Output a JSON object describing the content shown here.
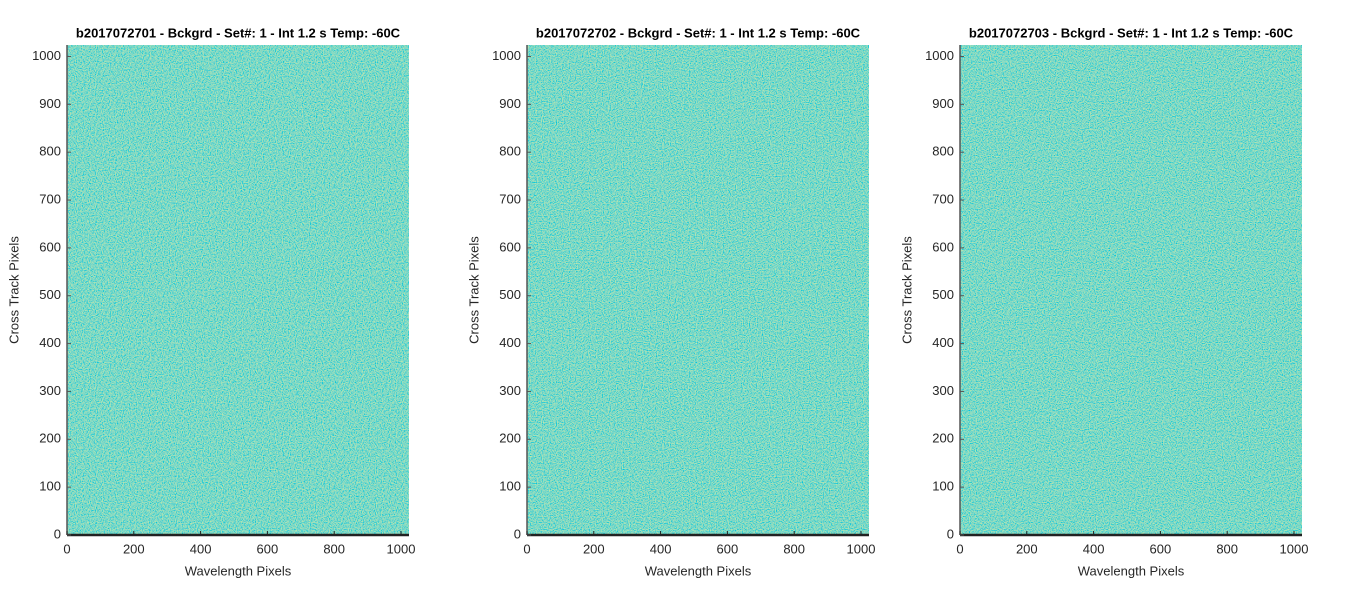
{
  "chart_data": [
    {
      "type": "heatmap",
      "title": "b2017072701 - Bckgrd - Set#: 1 - Int 1.2 s Temp: -60C",
      "xlabel": "Wavelength Pixels",
      "ylabel": "Cross Track Pixels",
      "xlim": [
        0,
        1024
      ],
      "ylim": [
        0,
        1024
      ],
      "xticks": [
        0,
        200,
        400,
        600,
        800,
        1000
      ],
      "yticks": [
        0,
        100,
        200,
        300,
        400,
        500,
        600,
        700,
        800,
        900,
        1000
      ]
    },
    {
      "type": "heatmap",
      "title": "b2017072702 - Bckgrd - Set#: 1 - Int 1.2 s Temp: -60C",
      "xlabel": "Wavelength Pixels",
      "ylabel": "Cross Track Pixels",
      "xlim": [
        0,
        1024
      ],
      "ylim": [
        0,
        1024
      ],
      "xticks": [
        0,
        200,
        400,
        600,
        800,
        1000
      ],
      "yticks": [
        0,
        100,
        200,
        300,
        400,
        500,
        600,
        700,
        800,
        900,
        1000
      ]
    },
    {
      "type": "heatmap",
      "title": "b2017072703 - Bckgrd - Set#: 1 - Int 1.2 s Temp: -60C",
      "xlabel": "Wavelength Pixels",
      "ylabel": "Cross Track Pixels",
      "xlim": [
        0,
        1024
      ],
      "ylim": [
        0,
        1024
      ],
      "xticks": [
        0,
        200,
        400,
        600,
        800,
        1000
      ],
      "yticks": [
        0,
        100,
        200,
        300,
        400,
        500,
        600,
        700,
        800,
        900,
        1000
      ]
    }
  ]
}
